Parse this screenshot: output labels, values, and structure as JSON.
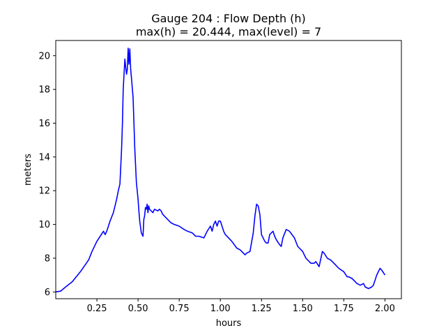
{
  "chart_data": {
    "type": "line",
    "title_line1": "Gauge 204 : Flow Depth (h)",
    "title_line2": "max(h) =  20.444,    max(level) = 7",
    "xlabel": "hours",
    "ylabel": "meters",
    "xlim": [
      0.0,
      2.1
    ],
    "ylim": [
      5.6,
      20.9
    ],
    "xticks": [
      0.25,
      0.5,
      0.75,
      1.0,
      1.25,
      1.5,
      1.75,
      2.0
    ],
    "xtick_labels": [
      "0.25",
      "0.50",
      "0.75",
      "1.00",
      "1.25",
      "1.50",
      "1.75",
      "2.00"
    ],
    "yticks": [
      6,
      8,
      10,
      12,
      14,
      16,
      18,
      20
    ],
    "ytick_labels": [
      "6",
      "8",
      "10",
      "12",
      "14",
      "16",
      "18",
      "20"
    ],
    "grid": false,
    "series": [
      {
        "color": "#0000ff",
        "x": [
          0.0,
          0.03,
          0.06,
          0.1,
          0.15,
          0.2,
          0.22,
          0.25,
          0.27,
          0.29,
          0.3,
          0.31,
          0.32,
          0.33,
          0.35,
          0.37,
          0.38,
          0.39,
          0.4,
          0.405,
          0.41,
          0.42,
          0.425,
          0.43,
          0.435,
          0.44,
          0.445,
          0.45,
          0.455,
          0.46,
          0.47,
          0.48,
          0.49,
          0.5,
          0.505,
          0.51,
          0.52,
          0.53,
          0.535,
          0.54,
          0.545,
          0.55,
          0.555,
          0.56,
          0.565,
          0.57,
          0.58,
          0.59,
          0.6,
          0.62,
          0.63,
          0.64,
          0.65,
          0.67,
          0.7,
          0.72,
          0.75,
          0.78,
          0.8,
          0.83,
          0.85,
          0.87,
          0.9,
          0.92,
          0.94,
          0.95,
          0.96,
          0.97,
          0.98,
          0.99,
          1.0,
          1.01,
          1.02,
          1.03,
          1.05,
          1.07,
          1.1,
          1.12,
          1.14,
          1.15,
          1.16,
          1.18,
          1.2,
          1.21,
          1.22,
          1.23,
          1.24,
          1.25,
          1.27,
          1.28,
          1.29,
          1.3,
          1.31,
          1.32,
          1.33,
          1.34,
          1.36,
          1.37,
          1.38,
          1.4,
          1.42,
          1.45,
          1.47,
          1.5,
          1.52,
          1.55,
          1.57,
          1.58,
          1.6,
          1.62,
          1.63,
          1.65,
          1.67,
          1.7,
          1.72,
          1.75,
          1.77,
          1.78,
          1.8,
          1.82,
          1.83,
          1.85,
          1.87,
          1.88,
          1.9,
          1.92,
          1.93,
          1.95,
          1.97,
          1.98,
          2.0
        ],
        "y": [
          6.0,
          6.05,
          6.3,
          6.6,
          7.2,
          7.9,
          8.4,
          9.0,
          9.3,
          9.6,
          9.4,
          9.6,
          9.9,
          10.2,
          10.7,
          11.5,
          12.0,
          12.4,
          14.5,
          16.0,
          18.0,
          19.8,
          19.3,
          18.9,
          19.2,
          20.444,
          19.5,
          20.4,
          19.2,
          18.7,
          17.5,
          14.5,
          12.5,
          11.5,
          10.8,
          10.2,
          9.5,
          9.3,
          10.3,
          10.5,
          11.0,
          10.9,
          11.2,
          10.7,
          11.1,
          10.9,
          10.8,
          10.7,
          10.9,
          10.8,
          10.9,
          10.8,
          10.6,
          10.4,
          10.1,
          10.0,
          9.9,
          9.7,
          9.6,
          9.5,
          9.3,
          9.3,
          9.2,
          9.6,
          9.9,
          9.6,
          10.0,
          10.2,
          9.9,
          10.2,
          10.2,
          9.9,
          9.6,
          9.4,
          9.2,
          9.0,
          8.6,
          8.5,
          8.3,
          8.2,
          8.3,
          8.4,
          9.5,
          10.5,
          11.2,
          11.1,
          10.6,
          9.4,
          9.0,
          8.9,
          8.9,
          9.4,
          9.5,
          9.6,
          9.3,
          9.1,
          8.8,
          8.7,
          9.2,
          9.7,
          9.6,
          9.2,
          8.7,
          8.4,
          8.0,
          7.7,
          7.7,
          7.8,
          7.5,
          8.4,
          8.3,
          8.0,
          7.9,
          7.6,
          7.4,
          7.2,
          6.9,
          6.9,
          6.8,
          6.6,
          6.5,
          6.4,
          6.5,
          6.3,
          6.2,
          6.3,
          6.4,
          7.0,
          7.4,
          7.3,
          7.0
        ]
      }
    ]
  }
}
